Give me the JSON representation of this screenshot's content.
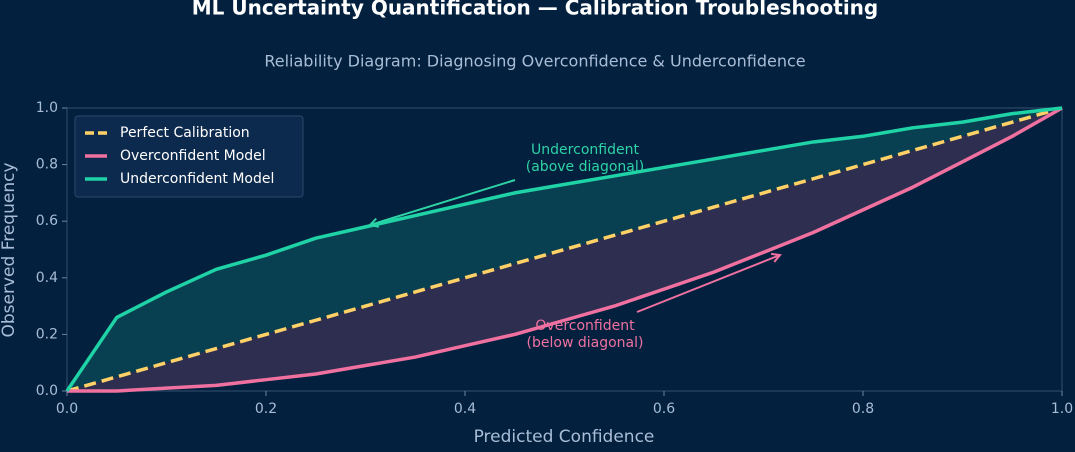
{
  "chart_data": {
    "type": "line",
    "title": "ML Uncertainty Quantification — Calibration Troubleshooting",
    "subtitle": "Reliability Diagram: Diagnosing Overconfidence & Underconfidence",
    "x_label": "Predicted Confidence",
    "y_label": "Observed Frequency",
    "x": [
      0,
      0.05,
      0.1,
      0.15,
      0.2,
      0.25,
      0.3,
      0.35,
      0.4,
      0.45,
      0.5,
      0.55,
      0.6,
      0.65,
      0.7,
      0.75,
      0.8,
      0.85,
      0.9,
      0.95,
      1
    ],
    "series": [
      {
        "name": "Perfect Calibration",
        "color": "#ffd166",
        "dashed": true,
        "values": [
          0,
          0.05,
          0.1,
          0.15,
          0.2,
          0.25,
          0.3,
          0.35,
          0.4,
          0.45,
          0.5,
          0.55,
          0.6,
          0.65,
          0.7,
          0.75,
          0.8,
          0.85,
          0.9,
          0.95,
          1
        ]
      },
      {
        "name": "Overconfident Model",
        "color": "#f0719f",
        "fill": "#f0719f",
        "values": [
          0,
          0,
          0.01,
          0.02,
          0.04,
          0.06,
          0.09,
          0.12,
          0.16,
          0.2,
          0.25,
          0.3,
          0.36,
          0.42,
          0.49,
          0.56,
          0.64,
          0.72,
          0.81,
          0.9,
          1
        ]
      },
      {
        "name": "Underconfident Model",
        "color": "#1fd3a6",
        "fill": "#1fd3a6",
        "values": [
          0,
          0.26,
          0.35,
          0.43,
          0.48,
          0.54,
          0.58,
          0.62,
          0.66,
          0.7,
          0.73,
          0.76,
          0.79,
          0.82,
          0.85,
          0.88,
          0.9,
          0.93,
          0.95,
          0.98,
          1
        ]
      }
    ],
    "annotations": [
      {
        "lines": [
          "Underconfident",
          "(above diagonal)"
        ],
        "color": "#2ed3a5"
      },
      {
        "lines": [
          "Overconfident",
          "(below diagonal)"
        ],
        "color": "#f0719f"
      }
    ],
    "xlim": [
      0,
      1
    ],
    "ylim": [
      0,
      1
    ],
    "xticks": [
      {
        "value": 0,
        "label": "0.0"
      },
      0.2,
      0.4,
      0.6,
      0.8,
      {
        "value": 1,
        "label": "1.0"
      }
    ],
    "yticks": [
      {
        "value": 0,
        "label": "0.0"
      },
      0.2,
      0.4,
      0.6,
      0.8,
      {
        "value": 1,
        "label": "1.0"
      }
    ],
    "grid": false,
    "legend": "upper left"
  }
}
